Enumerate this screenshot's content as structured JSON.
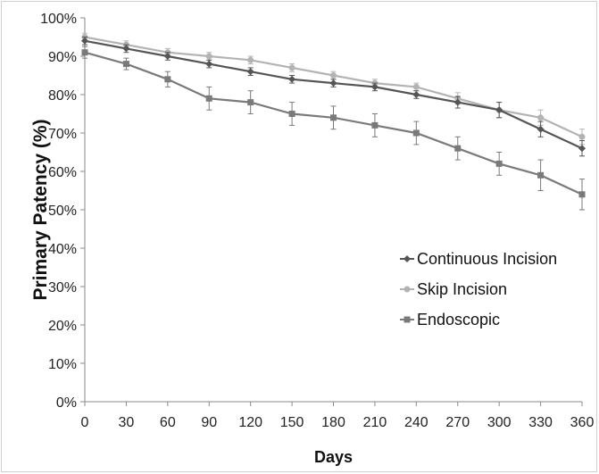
{
  "chart_data": {
    "type": "line",
    "title": "",
    "xlabel": "Days",
    "ylabel": "Primary Patency (%)",
    "x": [
      0,
      30,
      60,
      90,
      120,
      150,
      180,
      210,
      240,
      270,
      300,
      330,
      360
    ],
    "xlim": [
      0,
      360
    ],
    "ylim": [
      0,
      100
    ],
    "y_ticks": [
      "0%",
      "10%",
      "20%",
      "30%",
      "40%",
      "50%",
      "60%",
      "70%",
      "80%",
      "90%",
      "100%"
    ],
    "grid": false,
    "legend": "right",
    "series": [
      {
        "name": "Continuous Incision",
        "color": "#555555",
        "marker": "diamond",
        "values": [
          94,
          92,
          90,
          88,
          86,
          84,
          83,
          82,
          80,
          78,
          76,
          71,
          66
        ],
        "error": [
          1,
          1,
          1,
          1,
          1,
          1,
          1,
          1,
          1,
          1.5,
          2,
          2,
          2
        ]
      },
      {
        "name": "Skip Incision",
        "color": "#b3b3b3",
        "marker": "circle",
        "values": [
          95,
          93,
          91,
          90,
          89,
          87,
          85,
          83,
          82,
          79,
          76,
          74,
          69
        ],
        "error": [
          1,
          1,
          1,
          1,
          1,
          1,
          1,
          1,
          1,
          1.5,
          2,
          2,
          2
        ]
      },
      {
        "name": "Endoscopic",
        "color": "#7a7a7a",
        "marker": "square",
        "values": [
          91,
          88,
          84,
          79,
          78,
          75,
          74,
          72,
          70,
          66,
          62,
          59,
          54
        ],
        "error": [
          1.5,
          1.5,
          2,
          3,
          3,
          3,
          3,
          3,
          3,
          3,
          3,
          4,
          4
        ]
      }
    ]
  }
}
